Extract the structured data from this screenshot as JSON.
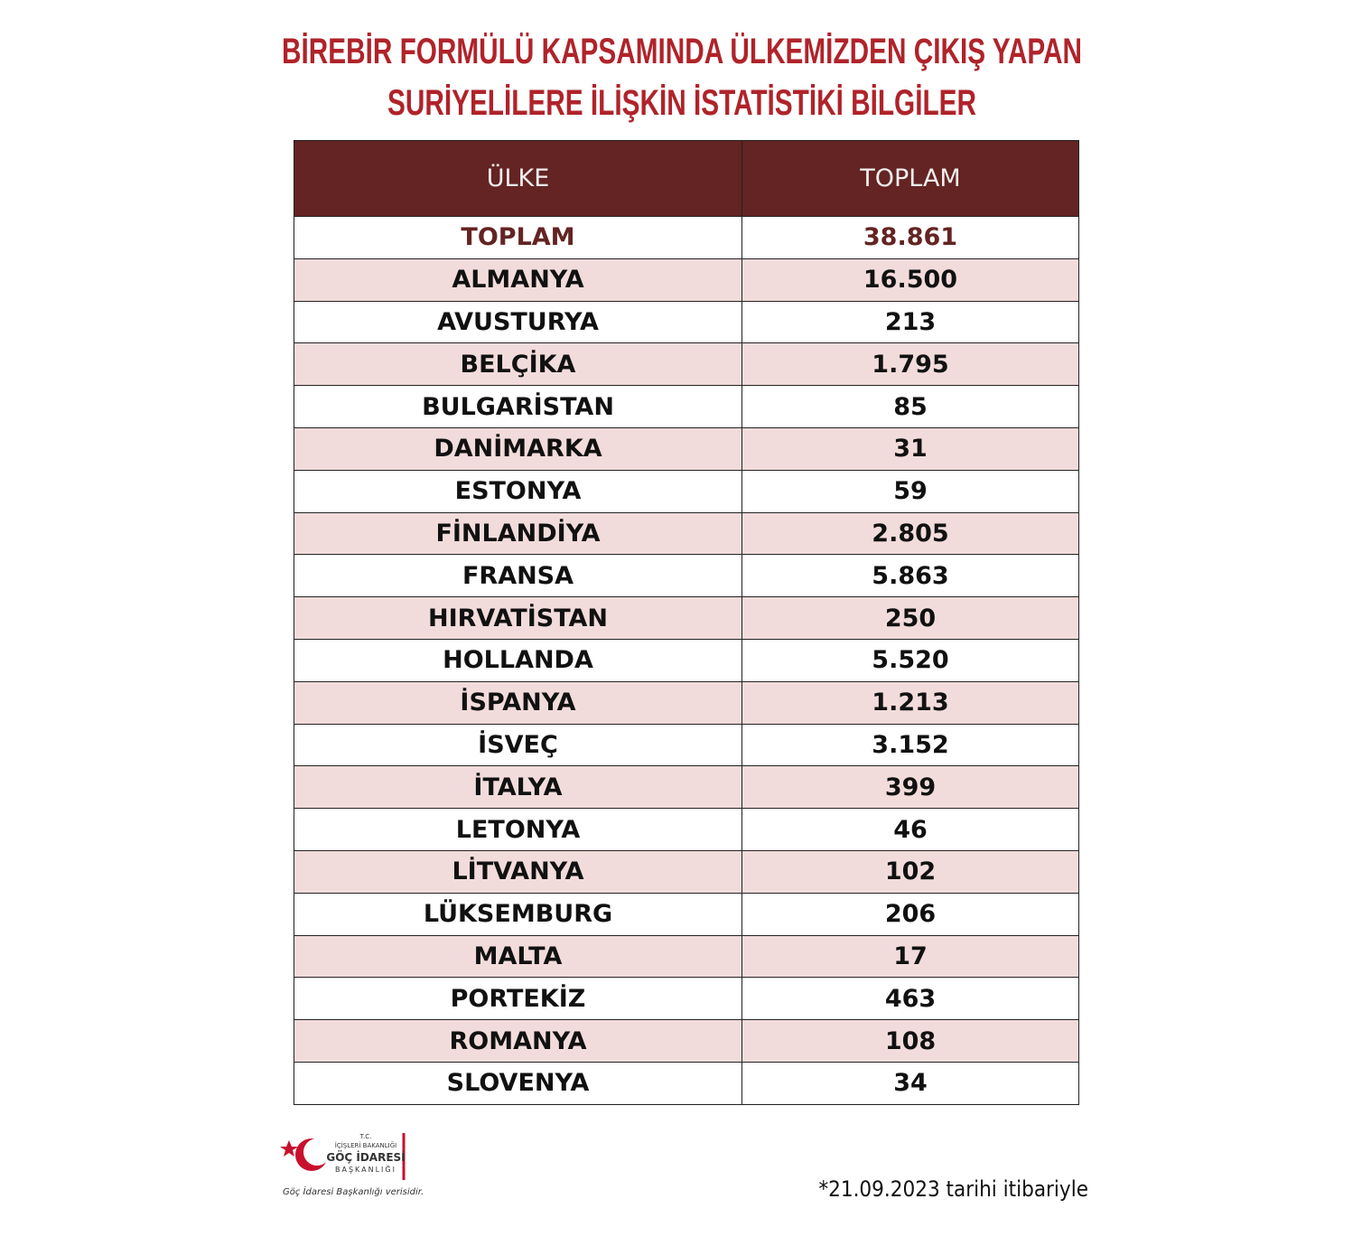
{
  "header": {
    "title_lines": [
      "BİREBİR FORMÜLÜ KAPSAMINDA ÜLKEMİZDEN ÇIKIŞ YAPAN",
      "SURİYELİLERE İLİŞKİN İSTATİSTİKİ BİLGİLER"
    ]
  },
  "table": {
    "columns": [
      "ÜLKE",
      "TOPLAM"
    ],
    "rows": [
      [
        "TOPLAM",
        "38.861"
      ],
      [
        "ALMANYA",
        "16.500"
      ],
      [
        "AVUSTURYA",
        "213"
      ],
      [
        "BELÇİKA",
        "1.795"
      ],
      [
        "BULGARİSTAN",
        "85"
      ],
      [
        "DANİMARKA",
        "31"
      ],
      [
        "ESTONYA",
        "59"
      ],
      [
        "FİNLANDİYA",
        "2.805"
      ],
      [
        "FRANSA",
        "5.863"
      ],
      [
        "HIRVATİSTAN",
        "250"
      ],
      [
        "HOLLANDA",
        "5.520"
      ],
      [
        "İSPANYA",
        "1.213"
      ],
      [
        "İSVEÇ",
        "3.152"
      ],
      [
        "İTALYA",
        "399"
      ],
      [
        "LETONYA",
        "46"
      ],
      [
        "LİTVANYA",
        "102"
      ],
      [
        "LÜKSEMBURG",
        "206"
      ],
      [
        "MALTA",
        "17"
      ],
      [
        "PORTEKİZ",
        "463"
      ],
      [
        "ROMANYA",
        "108"
      ],
      [
        "SLOVENYA",
        "34"
      ]
    ]
  },
  "logo": {
    "lines": [
      "T.C.",
      "İÇİŞLERİ BAKANLIĞI",
      "GÖÇ İDARESİ",
      "BAŞKANLIĞI"
    ],
    "caption": "Göç İdaresi Başkanlığı verisidir."
  },
  "footnote": "*21.09.2023 tarihi itibariyle"
}
